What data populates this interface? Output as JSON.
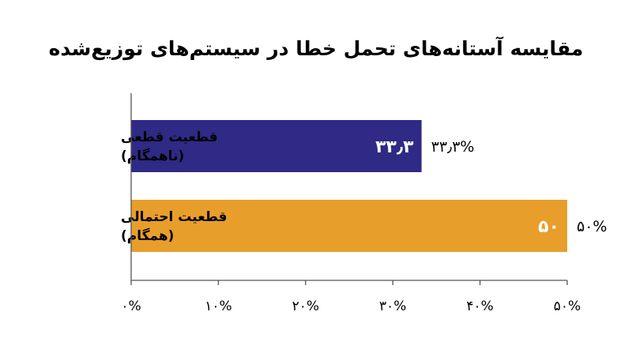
{
  "chart_data": {
    "type": "bar",
    "orientation": "horizontal",
    "title": "مقایسه آستانه‌های تحمل خطا در سیستم‌های توزیع‌شده",
    "xlabel": "",
    "ylabel": "",
    "categories": [
      [
        "قطعیت قطعی",
        "(ناهمگام)"
      ],
      [
        "قطعیت احتمالی",
        "(همگام)"
      ]
    ],
    "values": [
      33.3,
      50
    ],
    "inside_labels": [
      "۳۳٫۳",
      "۵۰"
    ],
    "outside_labels": [
      "۳۳٫۳%",
      "۵۰%"
    ],
    "colors": [
      "#2e2a85",
      "#e89e2b"
    ],
    "xlim": [
      0,
      50
    ],
    "xticks": [
      0,
      10,
      20,
      30,
      40,
      50
    ],
    "xtick_labels": [
      "۰%",
      "۱۰%",
      "۲۰%",
      "۳۰%",
      "۴۰%",
      "۵۰%"
    ],
    "grid": false,
    "legend": "none"
  }
}
